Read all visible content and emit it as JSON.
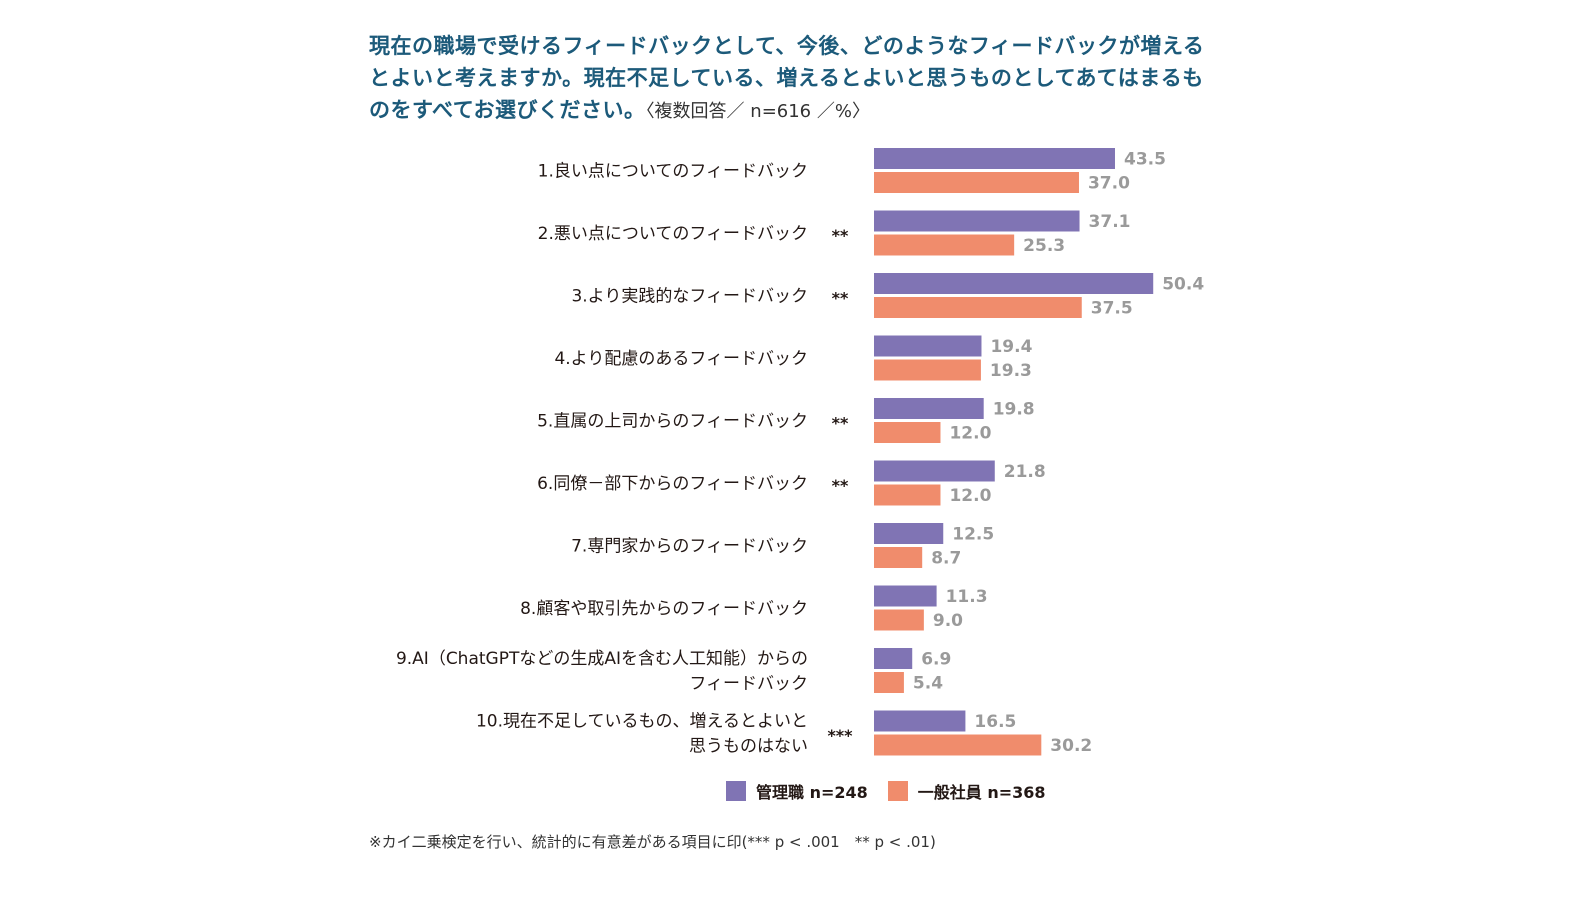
{
  "title": {
    "main": "現在の職場で受けるフィードバックとして、今後、どのようなフィードバックが増えるとよいと考えますか。現在不足している、増えるとよいと思うものとしてあてはまるものをすべてお選びください。",
    "note": "〈複数回答／ n=616 ／%〉"
  },
  "footnote": "※カイ二乗検定を行い、統計的に有意差がある項目に印(*** p < .001　** p < .01)",
  "colors": {
    "manager": "#8074b4",
    "employee": "#f08c6c",
    "value_text": "#9a9a9a",
    "title": "#1c5a7a"
  },
  "chart_data": {
    "type": "bar",
    "orientation": "horizontal",
    "categories": [
      [
        "1.良い点についてのフィードバック"
      ],
      [
        "2.悪い点についてのフィードバック"
      ],
      [
        "3.より実践的なフィードバック"
      ],
      [
        "4.より配慮のあるフィードバック"
      ],
      [
        "5.直属の上司からのフィードバック"
      ],
      [
        "6.同僚－部下からのフィードバック"
      ],
      [
        "7.専門家からのフィードバック"
      ],
      [
        "8.顧客や取引先からのフィードバック"
      ],
      [
        "9.AI（ChatGPTなどの生成AIを含む人工知能）からの",
        "フィードバック"
      ],
      [
        "10.現在不足しているもの、増えるとよいと",
        "思うものはない"
      ]
    ],
    "significance": [
      "",
      "**",
      "**",
      "",
      "**",
      "**",
      "",
      "",
      "",
      "***"
    ],
    "series": [
      {
        "name": "管理職 n=248",
        "color": "#8074b4",
        "values": [
          43.5,
          37.1,
          50.4,
          19.4,
          19.8,
          21.8,
          12.5,
          11.3,
          6.9,
          16.5
        ],
        "labels": [
          "43.5",
          "37.1",
          "50.4",
          "19.4",
          "19.8",
          "21.8",
          "12.5",
          "11.3",
          "6.9",
          "16.5"
        ]
      },
      {
        "name": "一般社員 n=368",
        "color": "#f08c6c",
        "values": [
          37.0,
          25.3,
          37.5,
          19.3,
          12.0,
          12.0,
          8.7,
          9.0,
          5.4,
          30.2
        ],
        "labels": [
          "37.0",
          "25.3",
          "37.5",
          "19.3",
          "12.0",
          "12.0",
          "8.7",
          "9.0",
          "5.4",
          "30.2"
        ]
      }
    ],
    "xlim": [
      0,
      100
    ],
    "grid": false,
    "legend_position": "bottom"
  }
}
